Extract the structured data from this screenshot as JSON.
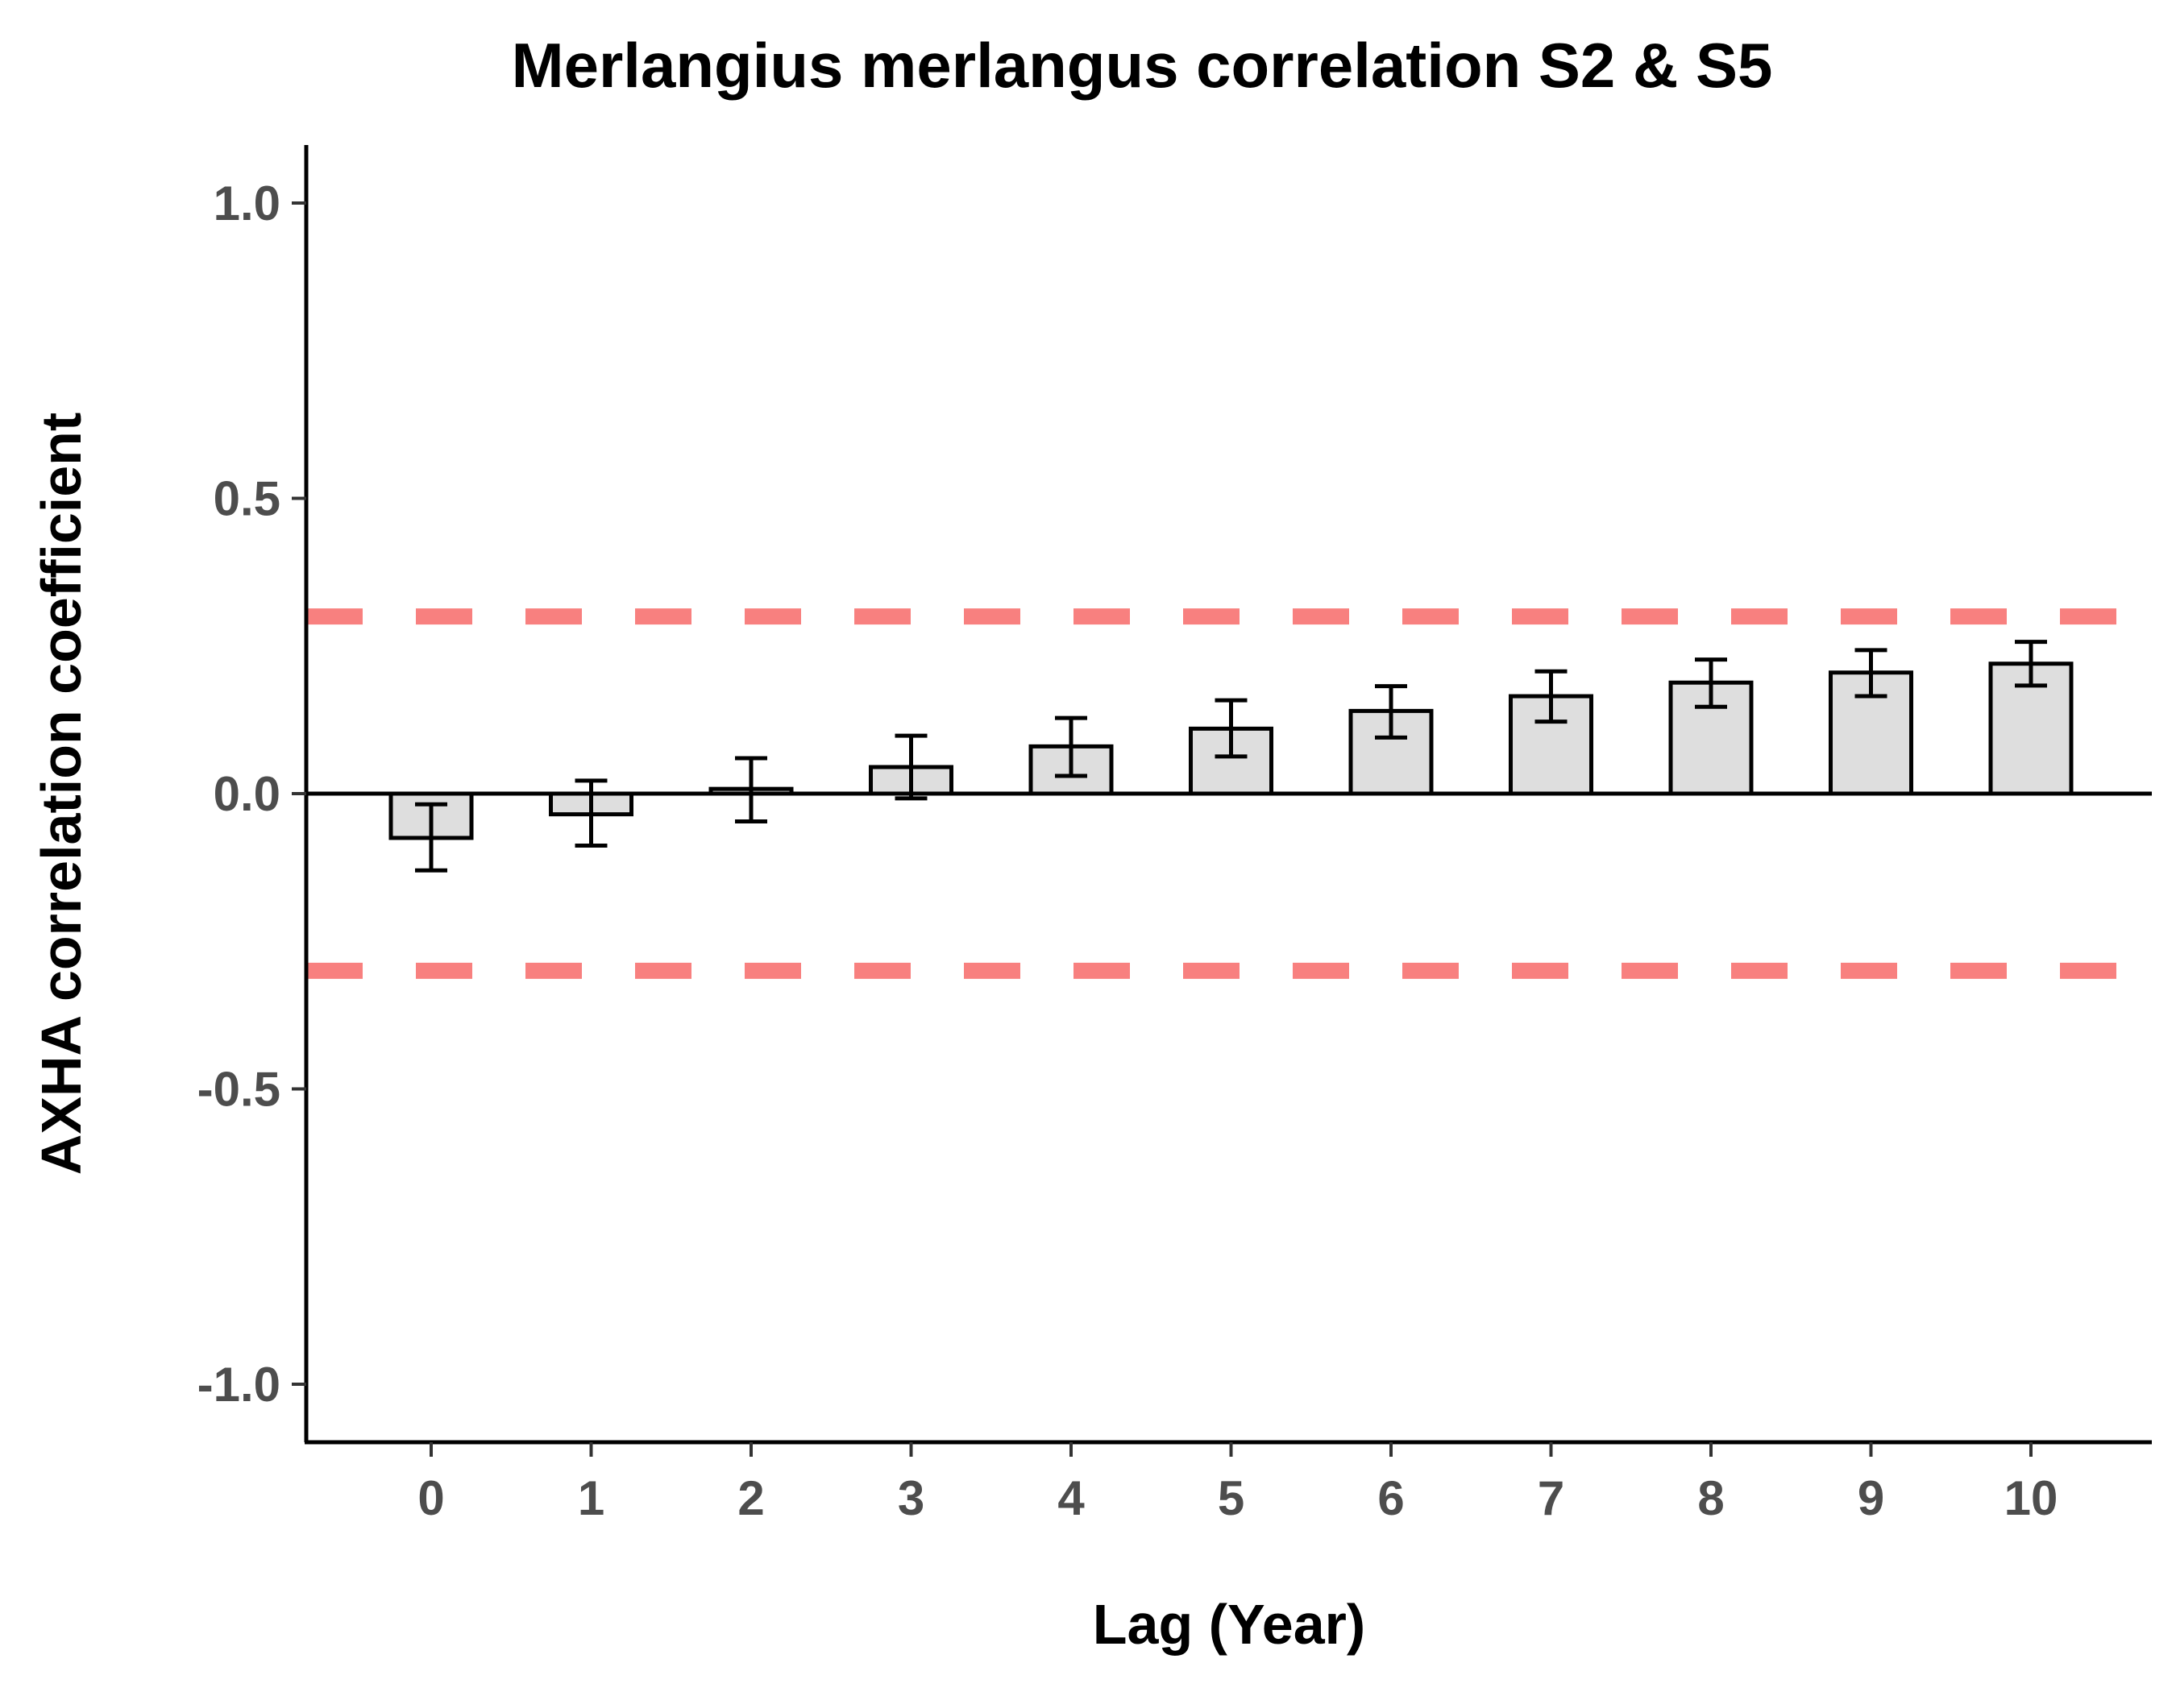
{
  "chart_data": {
    "type": "bar",
    "title": "Merlangius merlangus correlation S2 & S5",
    "xlabel": "Lag (Year)",
    "ylabel": "AXHA correlation coefficient",
    "categories": [
      "0",
      "1",
      "2",
      "3",
      "4",
      "5",
      "6",
      "7",
      "8",
      "9",
      "10"
    ],
    "values": [
      -0.075,
      -0.035,
      0.008,
      0.045,
      0.08,
      0.11,
      0.14,
      0.165,
      0.188,
      0.205,
      0.22
    ],
    "error_low": [
      -0.13,
      -0.088,
      -0.047,
      -0.008,
      0.03,
      0.063,
      0.095,
      0.122,
      0.147,
      0.165,
      0.183
    ],
    "error_high": [
      -0.018,
      0.022,
      0.06,
      0.098,
      0.128,
      0.158,
      0.182,
      0.207,
      0.227,
      0.243,
      0.257
    ],
    "ylim": [
      -1.1,
      1.1
    ],
    "yticks": [
      -1.0,
      -0.5,
      0.0,
      0.5,
      1.0
    ],
    "ytick_labels": [
      "-1.0",
      "-0.5",
      "0.0",
      "0.5",
      "1.0"
    ],
    "reference_lines": [
      {
        "y": 0.3,
        "style": "dashed",
        "color": "#f8807f"
      },
      {
        "y": -0.3,
        "style": "dashed",
        "color": "#f8807f"
      },
      {
        "y": 0.0,
        "style": "solid",
        "color": "#000000"
      }
    ],
    "bar_fill": "#dedede",
    "bar_stroke": "#000000",
    "grid": false,
    "legend": "none"
  }
}
